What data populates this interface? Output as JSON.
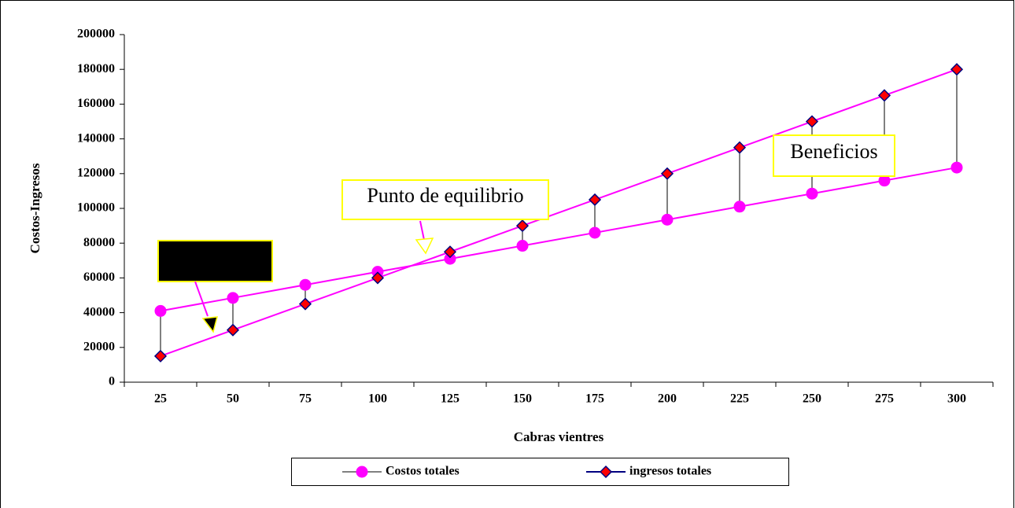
{
  "chart_data": {
    "type": "line",
    "x_label": "Cabras vientres",
    "y_label": "Costos-Ingresos",
    "categories": [
      "25",
      "50",
      "75",
      "100",
      "125",
      "150",
      "175",
      "200",
      "225",
      "250",
      "275",
      "300"
    ],
    "series": [
      {
        "name": "Costos totales",
        "color": "#ff00ff",
        "marker": "circle",
        "marker_fill": "#ff00ff",
        "marker_edge": "#ff00ff",
        "values": [
          41000,
          48500,
          56000,
          63500,
          71000,
          78500,
          86000,
          93500,
          101000,
          108500,
          116000,
          123500
        ]
      },
      {
        "name": "ingresos totales",
        "color": "#ff00ff",
        "marker": "diamond",
        "marker_fill": "#ff0000",
        "marker_edge": "#000080",
        "values": [
          15000,
          30000,
          45000,
          60000,
          75000,
          90000,
          105000,
          120000,
          135000,
          150000,
          165000,
          180000
        ]
      }
    ],
    "ylim": [
      0,
      200000
    ],
    "yticks": [
      0,
      20000,
      40000,
      60000,
      80000,
      100000,
      120000,
      140000,
      160000,
      180000,
      200000
    ],
    "drop_lines": true,
    "grid": false,
    "legend": "bottom",
    "annotations": [
      {
        "text": "Punto de equilibrio"
      },
      {
        "text": "Beneficios"
      }
    ]
  }
}
